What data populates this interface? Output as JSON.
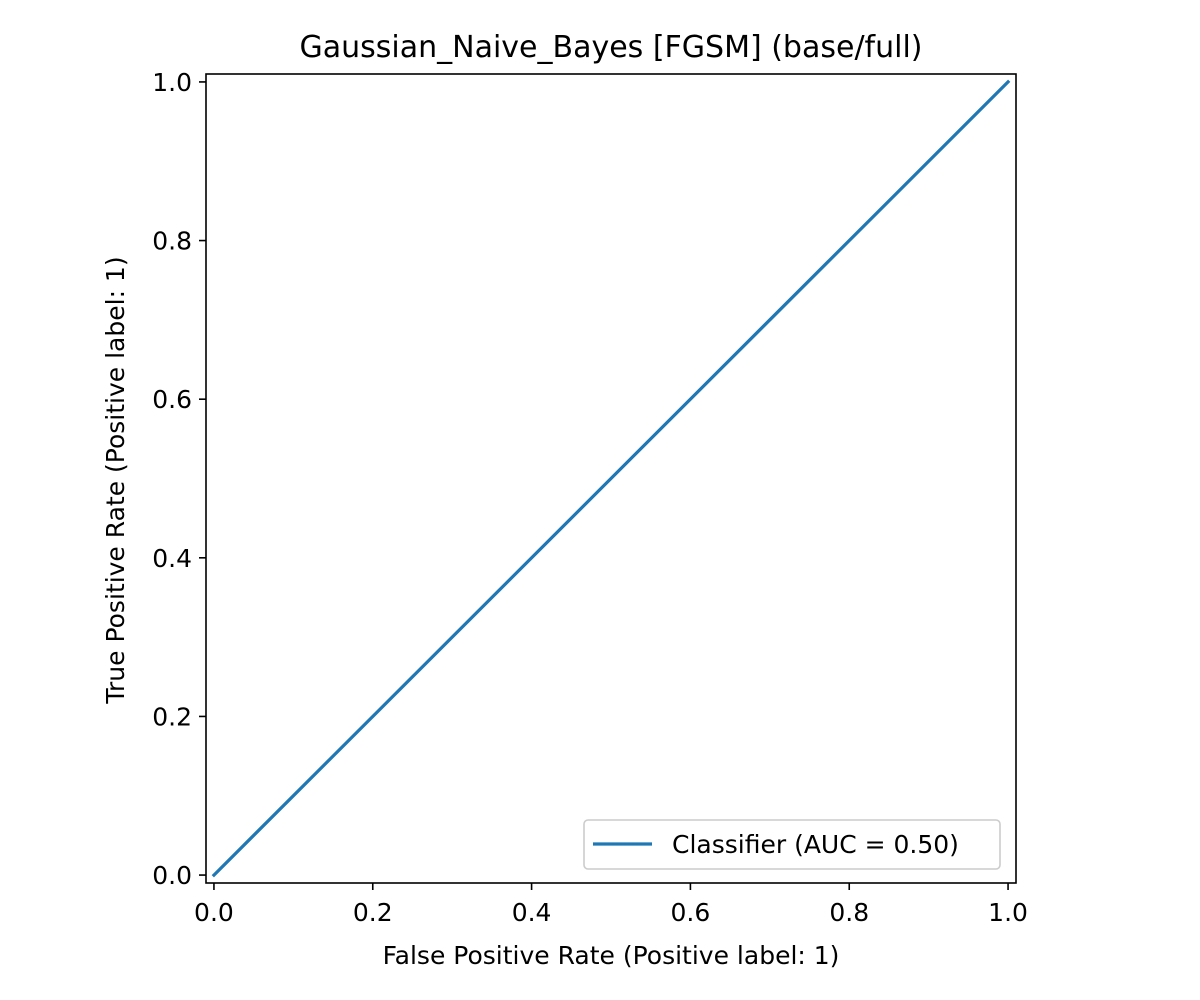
{
  "chart_data": {
    "type": "line",
    "title": "Gaussian_Naive_Bayes [FGSM] (base/full)",
    "xlabel": "False Positive Rate (Positive label: 1)",
    "ylabel": "True Positive Rate (Positive label: 1)",
    "xlim": [
      -0.01,
      1.01
    ],
    "ylim": [
      -0.01,
      1.01
    ],
    "xticks": [
      0.0,
      0.2,
      0.4,
      0.6,
      0.8,
      1.0
    ],
    "yticks": [
      0.0,
      0.2,
      0.4,
      0.6,
      0.8,
      1.0
    ],
    "xtick_labels": [
      "0.0",
      "0.2",
      "0.4",
      "0.6",
      "0.8",
      "1.0"
    ],
    "ytick_labels": [
      "0.0",
      "0.2",
      "0.4",
      "0.6",
      "0.8",
      "1.0"
    ],
    "grid": false,
    "legend_position": "bottom-right",
    "series": [
      {
        "name": "Classifier (AUC = 0.50)",
        "color": "#1f77b4",
        "x": [
          0.0,
          1.0
        ],
        "y": [
          0.0,
          1.0
        ]
      }
    ]
  }
}
